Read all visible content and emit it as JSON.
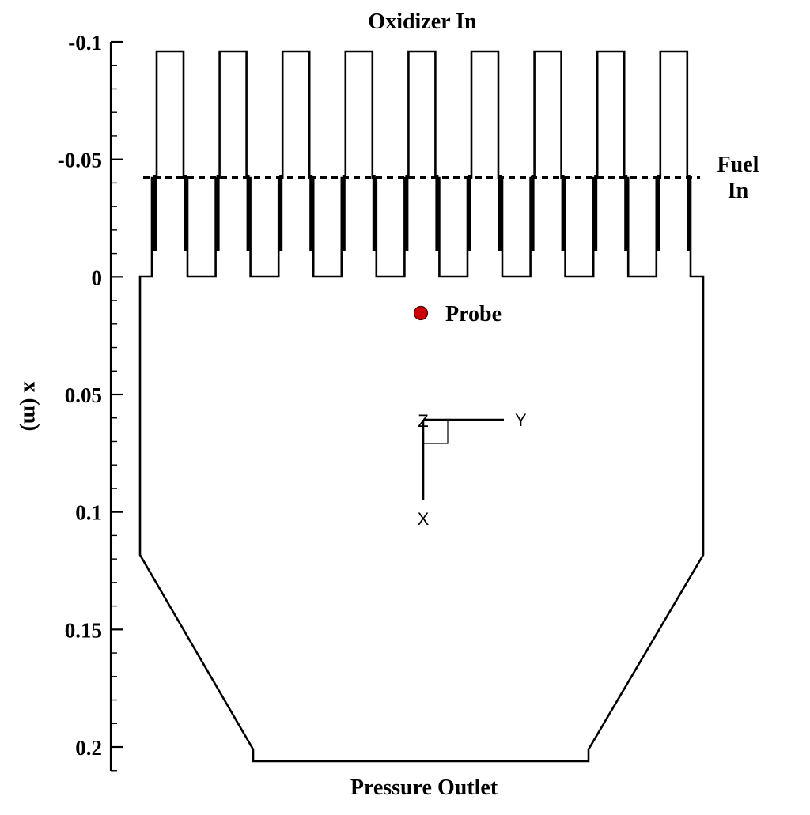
{
  "chart_data": {
    "type": "diagram",
    "title": "Oxidizer In",
    "ylabel": "x (m)",
    "ylim": [
      -0.1,
      0.2
    ],
    "y_axis_inverted": true,
    "y_ticks": [
      -0.1,
      -0.05,
      0,
      0.05,
      0.1,
      0.15,
      0.2
    ],
    "y_tick_labels": [
      "-0.1",
      "-0.05",
      "0",
      "0.05",
      "0.1",
      "0.15",
      "0.2"
    ],
    "y_minor_tick_step": 0.01,
    "oxidizer_post_count": 9,
    "labels": {
      "oxidizer_inlet": "Oxidizer In",
      "fuel_inlet_line1": "Fuel",
      "fuel_inlet_line2": "In",
      "outlet": "Pressure Outlet",
      "probe": "Probe"
    },
    "probe": {
      "color": "#cc0000"
    },
    "triad": {
      "z_label": "Z",
      "y_label": "Y",
      "x_label": "X"
    }
  }
}
